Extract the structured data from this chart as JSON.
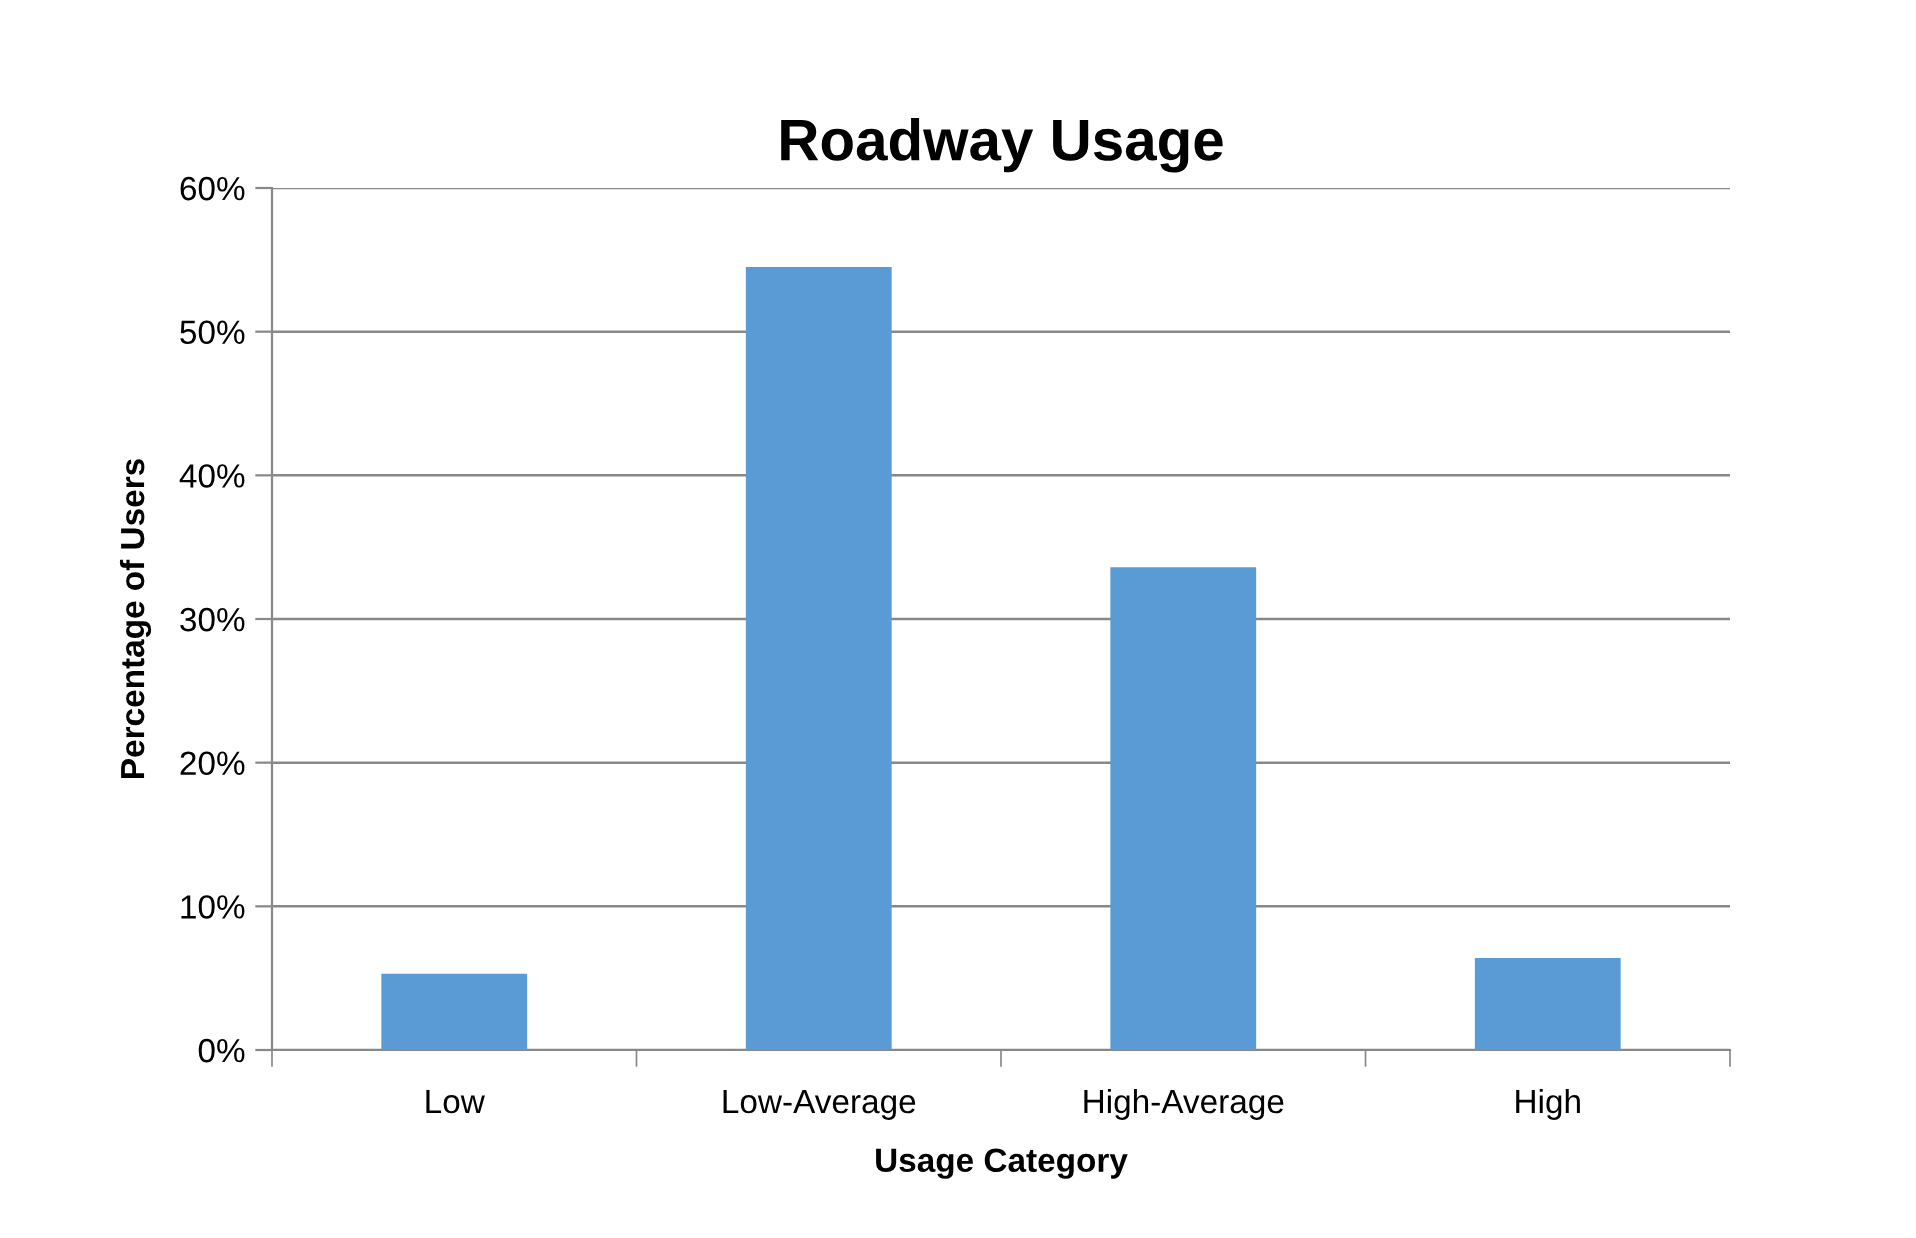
{
  "chart_data": {
    "type": "bar",
    "title": "Roadway Usage",
    "xlabel": "Usage Category",
    "ylabel": "Percentage of Users",
    "categories": [
      "Low",
      "Low-Average",
      "High-Average",
      "High"
    ],
    "values": [
      5.3,
      54.5,
      33.6,
      6.4
    ],
    "color": "#5b9bd5",
    "ylim": [
      0,
      60
    ],
    "yticks": [
      {
        "value": 0,
        "label": "0%"
      },
      {
        "value": 10,
        "label": "10%"
      },
      {
        "value": 20,
        "label": "20%"
      },
      {
        "value": 30,
        "label": "30%"
      },
      {
        "value": 40,
        "label": "40%"
      },
      {
        "value": 50,
        "label": "50%"
      },
      {
        "value": 60,
        "label": "60%"
      }
    ],
    "grid": "y",
    "legend": false
  }
}
